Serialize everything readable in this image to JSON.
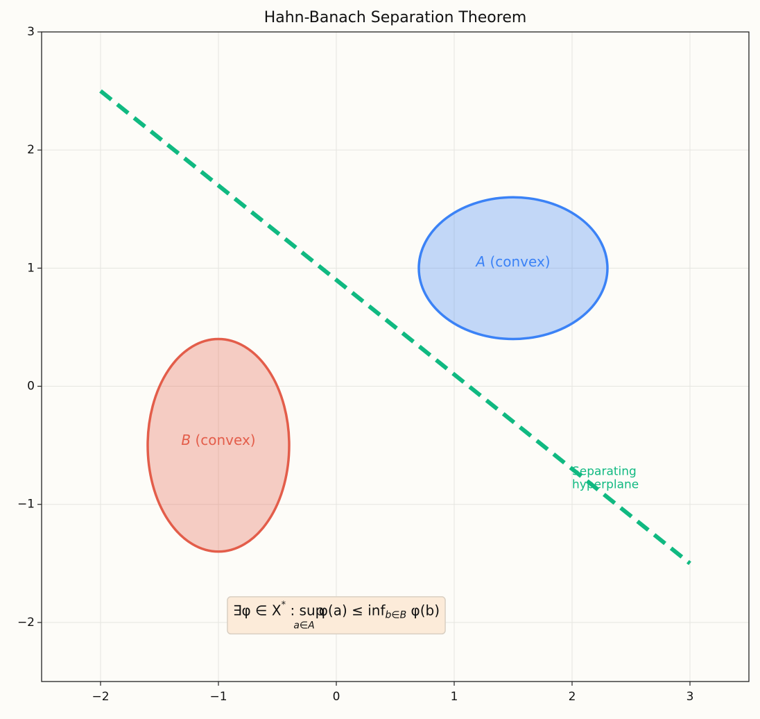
{
  "chart_data": {
    "type": "shapes",
    "title": "Hahn-Banach Separation Theorem",
    "xlim": [
      -2.5,
      3.5
    ],
    "ylim": [
      -2.5,
      3
    ],
    "xticks": [
      {
        "value": -2,
        "label": "−2"
      },
      {
        "value": -1,
        "label": "−1"
      },
      0,
      1,
      2,
      3
    ],
    "yticks": [
      {
        "value": -2,
        "label": "−2"
      },
      {
        "value": -1,
        "label": "−1"
      },
      0,
      1,
      2,
      3
    ],
    "grid": true,
    "ellipses": [
      {
        "symbol": "A",
        "text": "(convex)",
        "center": [
          1.5,
          1
        ],
        "rx": 0.8,
        "ry": 0.6,
        "label_xy": [
          1.5,
          1.05
        ],
        "color": "#3b82f6"
      },
      {
        "symbol": "B",
        "text": "(convex)",
        "center": [
          -1,
          -0.5
        ],
        "rx": 0.6,
        "ry": 0.9,
        "label_xy": [
          -1,
          -0.46
        ],
        "color": "#e35d4a"
      }
    ],
    "line": {
      "x": [
        -2,
        3
      ],
      "y": [
        2.5,
        -1.5
      ],
      "color": "#10b981"
    },
    "annotation": {
      "lines": [
        "Separating",
        "hyperplane"
      ],
      "xy": [
        2,
        -0.77
      ],
      "color": "#10b981"
    },
    "formula": {
      "parts": [
        "∃φ ∈ X",
        "*",
        " : sup",
        "a∈A",
        "φ(a) ≤ inf",
        "b∈B",
        " φ(b)"
      ],
      "xy": [
        0,
        -1.95
      ]
    }
  }
}
